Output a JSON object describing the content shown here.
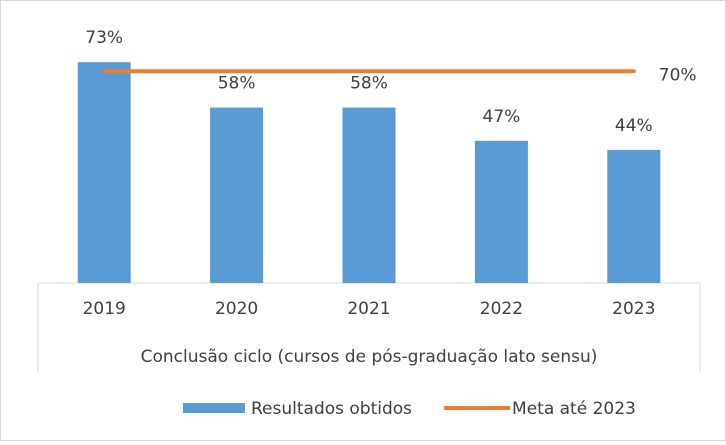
{
  "chart_data": {
    "type": "bar",
    "categories": [
      "2019",
      "2020",
      "2021",
      "2022",
      "2023"
    ],
    "x_label": "Conclusão ciclo (cursos de pós-graduação lato sensu)",
    "series": [
      {
        "name": "Resultados obtidos",
        "type": "bar",
        "color": "#5b9bd5",
        "values": [
          73,
          58,
          58,
          47,
          44
        ],
        "value_labels": [
          "73%",
          "58%",
          "58%",
          "47%",
          "44%"
        ]
      },
      {
        "name": "Meta até 2023",
        "type": "line",
        "color": "#ed7d31",
        "values": [
          70,
          70,
          70,
          70,
          70
        ],
        "value_labels": [
          null,
          null,
          null,
          null,
          "70%"
        ]
      }
    ],
    "ylim": [
      0,
      80
    ],
    "grid": false,
    "legend": "bottom"
  }
}
